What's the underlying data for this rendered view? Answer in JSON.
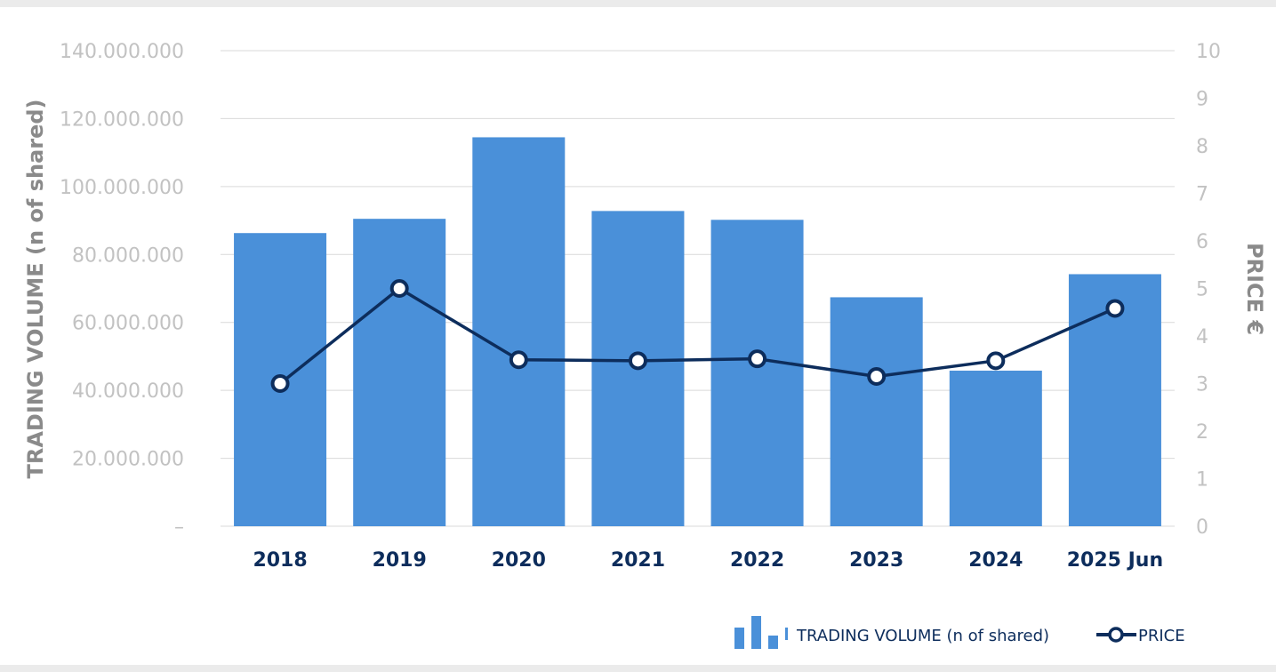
{
  "chart_data": {
    "type": "bar",
    "categories": [
      "2018",
      "2019",
      "2020",
      "2021",
      "2022",
      "2023",
      "2024",
      "2025 Jun"
    ],
    "series": [
      {
        "name": "TRADING  VOLUME (n of shared)",
        "type": "bar",
        "axis": "left",
        "color": "#4a90d9",
        "values": [
          86300000,
          90500000,
          114500000,
          92800000,
          90200000,
          67400000,
          45800000,
          74200000
        ]
      },
      {
        "name": "PRICE",
        "type": "line",
        "axis": "right",
        "color": "#0d2d5c",
        "values": [
          3.0,
          5.0,
          3.5,
          3.48,
          3.52,
          3.15,
          3.48,
          4.58
        ]
      }
    ],
    "y_left": {
      "label": "TRADING  VOLUME (n of shared)",
      "range": [
        0,
        140000000
      ],
      "ticks": [
        "–",
        "20.000.000",
        "40.000.000",
        "60.000.000",
        "80.000.000",
        "100.000.000",
        "120.000.000",
        "140.000.000"
      ]
    },
    "y_right": {
      "label": "PRICE €",
      "range": [
        0,
        10
      ],
      "ticks": [
        "0",
        "1",
        "2",
        "3",
        "4",
        "5",
        "6",
        "7",
        "8",
        "9",
        "10"
      ]
    },
    "grid": true,
    "legend": {
      "position": "bottom-right",
      "items": [
        "TRADING  VOLUME (n of shared)",
        "PRICE"
      ]
    }
  }
}
